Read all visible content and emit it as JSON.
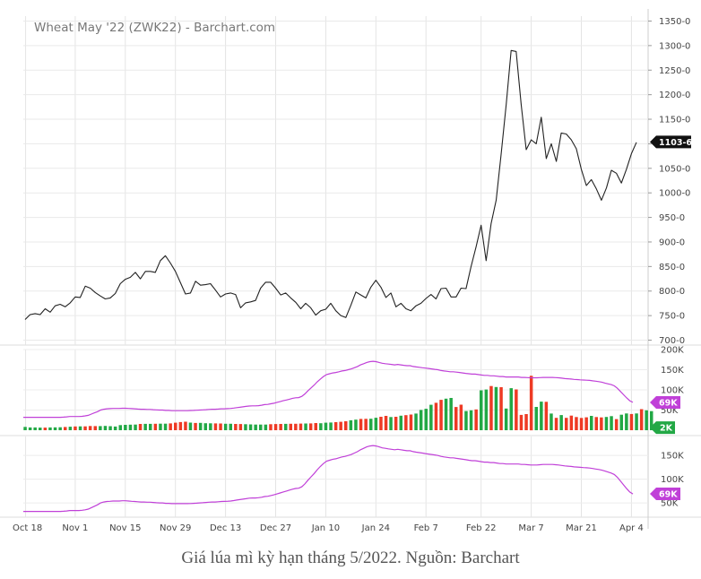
{
  "caption": "Giá lúa mì kỳ hạn tháng 5/2022. Nguồn: Barchart",
  "chart_data": [
    {
      "type": "line",
      "title": "Wheat May '22 (ZWK22) - Barchart.com",
      "ylim": [
        690,
        1360
      ],
      "yticks": [
        "700-0",
        "750-0",
        "800-0",
        "850-0",
        "900-0",
        "950-0",
        "1000-0",
        "1050-0",
        "1100-0",
        "1150-0",
        "1200-0",
        "1250-0",
        "1300-0",
        "1350-0"
      ],
      "ytick_values": [
        700,
        750,
        800,
        850,
        900,
        950,
        1000,
        1050,
        1100,
        1150,
        1200,
        1250,
        1300,
        1350
      ],
      "last_price_label": "1103-6",
      "last_price": 1103.75,
      "grid": true,
      "line_color": "#222222",
      "series": [
        {
          "values": [
            742,
            752,
            754,
            752,
            764,
            757,
            770,
            773,
            768,
            776,
            788,
            787,
            810,
            806,
            797,
            790,
            784,
            786,
            795,
            815,
            824,
            828,
            838,
            825,
            840,
            840,
            838,
            862,
            872,
            857,
            840,
            817,
            794,
            796,
            820,
            812,
            813,
            815,
            802,
            788,
            794,
            796,
            793,
            766,
            776,
            778,
            781,
            806,
            818,
            818,
            806,
            792,
            796,
            786,
            777,
            764,
            775,
            766,
            751,
            760,
            763,
            775,
            760,
            750,
            746,
            771,
            798,
            792,
            786,
            808,
            822,
            808,
            787,
            796,
            768,
            775,
            764,
            760,
            770,
            775,
            785,
            793,
            784,
            805,
            806,
            788,
            788,
            806,
            805,
            850,
            890,
            934,
            862,
            938,
            985,
            1080,
            1180,
            1290,
            1288,
            1180,
            1088,
            1108,
            1100,
            1154,
            1070,
            1100,
            1064,
            1122,
            1120,
            1108,
            1090,
            1048,
            1015,
            1027,
            1008,
            985,
            1010,
            1046,
            1040,
            1020,
            1048,
            1080,
            1103
          ]
        }
      ]
    },
    {
      "type": "bar",
      "ylim": [
        0,
        200000
      ],
      "yticks": [
        "50K",
        "100K",
        "150K",
        "200K"
      ],
      "ytick_values": [
        50000,
        100000,
        150000,
        200000
      ],
      "overlay_label": "69K",
      "overlay_value": 69000,
      "last_volume_label": "2K",
      "last_volume": 2000,
      "up_color": "#22a845",
      "down_color": "#ee3a24",
      "overlay_color": "#c040d8",
      "volume_values": [
        8200,
        6800,
        6800,
        6400,
        6400,
        6800,
        7200,
        7300,
        8100,
        8700,
        9300,
        9600,
        9600,
        10400,
        10200,
        10300,
        10700,
        10000,
        9200,
        12600,
        13400,
        13700,
        14000,
        15600,
        15700,
        15700,
        16100,
        16300,
        16300,
        17000,
        18600,
        20300,
        21100,
        18900,
        18100,
        18300,
        17300,
        17100,
        17000,
        16600,
        16000,
        15900,
        15600,
        15300,
        15000,
        14400,
        14000,
        13900,
        13900,
        15000,
        15400,
        15600,
        15800,
        15900,
        16100,
        16400,
        16600,
        16900,
        17700,
        17300,
        18600,
        19100,
        20100,
        21000,
        22300,
        24600,
        26300,
        28000,
        28200,
        28400,
        30900,
        33400,
        35600,
        32600,
        33400,
        35900,
        37300,
        38800,
        41300,
        50300,
        53000,
        63000,
        68000,
        75300,
        78300,
        80000,
        57500,
        63400,
        47600,
        49300,
        51600,
        98800,
        101000,
        109500,
        107200,
        106600,
        53800,
        104200,
        101200,
        38100,
        40100,
        135000,
        57700,
        70800,
        70500,
        41300,
        30600,
        37500,
        30700,
        36200,
        32700,
        30500,
        32000,
        35500,
        32600,
        31700,
        32900,
        34900,
        27600,
        38400,
        41500,
        40300,
        41600,
        52300,
        49400,
        47400,
        2000
      ],
      "volume_up": [
        true,
        true,
        true,
        true,
        false,
        true,
        true,
        true,
        false,
        true,
        false,
        true,
        false,
        false,
        false,
        true,
        true,
        true,
        true,
        true,
        true,
        true,
        true,
        false,
        true,
        true,
        false,
        true,
        true,
        false,
        false,
        false,
        false,
        true,
        false,
        true,
        true,
        true,
        false,
        false,
        true,
        true,
        false,
        false,
        true,
        true,
        true,
        true,
        true,
        false,
        false,
        false,
        true,
        false,
        false,
        false,
        true,
        false,
        false,
        true,
        true,
        true,
        false,
        false,
        false,
        true,
        true,
        false,
        false,
        true,
        true,
        false,
        false,
        true,
        false,
        true,
        false,
        false,
        true,
        true,
        true,
        true,
        false,
        false,
        true,
        true,
        false,
        false,
        true,
        true,
        false,
        true,
        true,
        false,
        true,
        false,
        true,
        true,
        false,
        false,
        false,
        false,
        true,
        true,
        false,
        true,
        false,
        true,
        false,
        false,
        false,
        false,
        false,
        true,
        false,
        false,
        true,
        true,
        false,
        true,
        true,
        false,
        true,
        false,
        true,
        true,
        true
      ],
      "overlay_values": [
        32000,
        32000,
        32000,
        32000,
        32000,
        32000,
        32000,
        32000,
        32000,
        32000,
        32000,
        32000,
        32000,
        32500,
        33000,
        34000,
        34000,
        34000,
        34000,
        34500,
        35500,
        37000,
        40000,
        43000,
        46000,
        50000,
        52000,
        53000,
        53500,
        54000,
        54000,
        54000,
        54500,
        54500,
        54000,
        53500,
        53000,
        52500,
        52000,
        52000,
        51500,
        51500,
        51000,
        50500,
        50000,
        50000,
        49000,
        49000,
        48500,
        48500,
        48500,
        48500,
        48500,
        48500,
        48800,
        49000,
        49500,
        50000,
        50500,
        51000,
        51500,
        52000,
        52000,
        52500,
        53000,
        53200,
        53500,
        54000,
        55000,
        56000,
        57000,
        58000,
        59000,
        60000,
        60500,
        60500,
        61000,
        62000,
        63500,
        64000,
        65500,
        67000,
        69000,
        71000,
        73000,
        75000,
        77000,
        79000,
        80500,
        81000,
        84000,
        90000,
        98000,
        105000,
        112000,
        120000,
        127000,
        133000,
        138000,
        140000,
        142000,
        143000,
        145000,
        147000,
        148000,
        150000,
        152000,
        155000,
        158000,
        162000,
        165000,
        168000,
        170000,
        171000,
        170000,
        168000,
        166000,
        165000,
        164000,
        163000,
        162000,
        163000,
        162000,
        161000,
        160000,
        160000,
        158000,
        157000,
        156000,
        155000,
        154000,
        153000,
        152000,
        151000,
        150000,
        148000,
        147000,
        146000,
        145000,
        145000,
        144000,
        143000,
        142000,
        141000,
        140000,
        139000,
        139000,
        138000,
        137000,
        136000,
        136000,
        135000,
        135000,
        134000,
        133000,
        133000,
        132000,
        132000,
        132000,
        132000,
        132000,
        131000,
        131000,
        130500,
        130000,
        130000,
        130000,
        130500,
        131000,
        131000,
        131000,
        131000,
        130500,
        130000,
        129000,
        128000,
        127500,
        127000,
        126000,
        125500,
        125000,
        124500,
        124000,
        123500,
        122500,
        121500,
        120500,
        119000,
        117000,
        115000,
        113000,
        110000,
        104000,
        96000,
        88000,
        80000,
        73000,
        69000
      ]
    },
    {
      "type": "line",
      "ylim": [
        20000,
        190000
      ],
      "yticks": [
        "50K",
        "100K",
        "150K"
      ],
      "ytick_values": [
        50000,
        100000,
        150000
      ],
      "last_label": "69K",
      "last_value": 69000,
      "line_color": "#c040d8",
      "series": [
        {
          "values": [
            32000,
            32000,
            32000,
            32000,
            32000,
            32000,
            32000,
            32000,
            32000,
            32000,
            32000,
            32000,
            32000,
            32500,
            33000,
            34000,
            34000,
            34000,
            34000,
            34500,
            35500,
            37000,
            40000,
            43000,
            46000,
            50000,
            52000,
            53000,
            53500,
            54000,
            54000,
            54000,
            54500,
            54500,
            54000,
            53500,
            53000,
            52500,
            52000,
            52000,
            51500,
            51500,
            51000,
            50500,
            50000,
            50000,
            49000,
            49000,
            48500,
            48500,
            48500,
            48500,
            48500,
            48500,
            48800,
            49000,
            49500,
            50000,
            50500,
            51000,
            51500,
            52000,
            52000,
            52500,
            53000,
            53200,
            53500,
            54000,
            55000,
            56000,
            57000,
            58000,
            59000,
            60000,
            60500,
            60500,
            61000,
            62000,
            63500,
            64000,
            65500,
            67000,
            69000,
            71000,
            73000,
            75000,
            77000,
            79000,
            80500,
            81000,
            84000,
            90000,
            98000,
            105000,
            112000,
            120000,
            127000,
            133000,
            138000,
            140000,
            142000,
            143000,
            145000,
            147000,
            148000,
            150000,
            152000,
            155000,
            158000,
            162000,
            165000,
            168000,
            170000,
            171000,
            170000,
            168000,
            166000,
            165000,
            164000,
            163000,
            162000,
            163000,
            162000,
            161000,
            160000,
            160000,
            158000,
            157000,
            156000,
            155000,
            154000,
            153000,
            152000,
            151000,
            150000,
            148000,
            147000,
            146000,
            145000,
            145000,
            144000,
            143000,
            142000,
            141000,
            140000,
            139000,
            139000,
            138000,
            137000,
            136000,
            136000,
            135000,
            135000,
            134000,
            133000,
            133000,
            132000,
            132000,
            132000,
            132000,
            132000,
            131000,
            131000,
            130500,
            130000,
            130000,
            130000,
            130500,
            131000,
            131000,
            131000,
            131000,
            130500,
            130000,
            129000,
            128000,
            127500,
            127000,
            126000,
            125500,
            125000,
            124500,
            124000,
            123500,
            122500,
            121500,
            120500,
            119000,
            117000,
            115000,
            113000,
            110000,
            104000,
            96000,
            88000,
            80000,
            73000,
            69000
          ]
        }
      ]
    }
  ],
  "x_axis": {
    "labels": [
      "Oct 18",
      "Nov 1",
      "Nov 15",
      "Nov 29",
      "Dec 13",
      "Dec 27",
      "Jan 10",
      "Jan 24",
      "Feb 7",
      "Feb 22",
      "Mar 7",
      "Mar 21",
      "Apr 4"
    ],
    "positions": [
      0.1,
      10,
      20,
      30,
      40,
      50,
      60,
      70,
      80,
      91,
      101,
      111,
      121
    ]
  }
}
